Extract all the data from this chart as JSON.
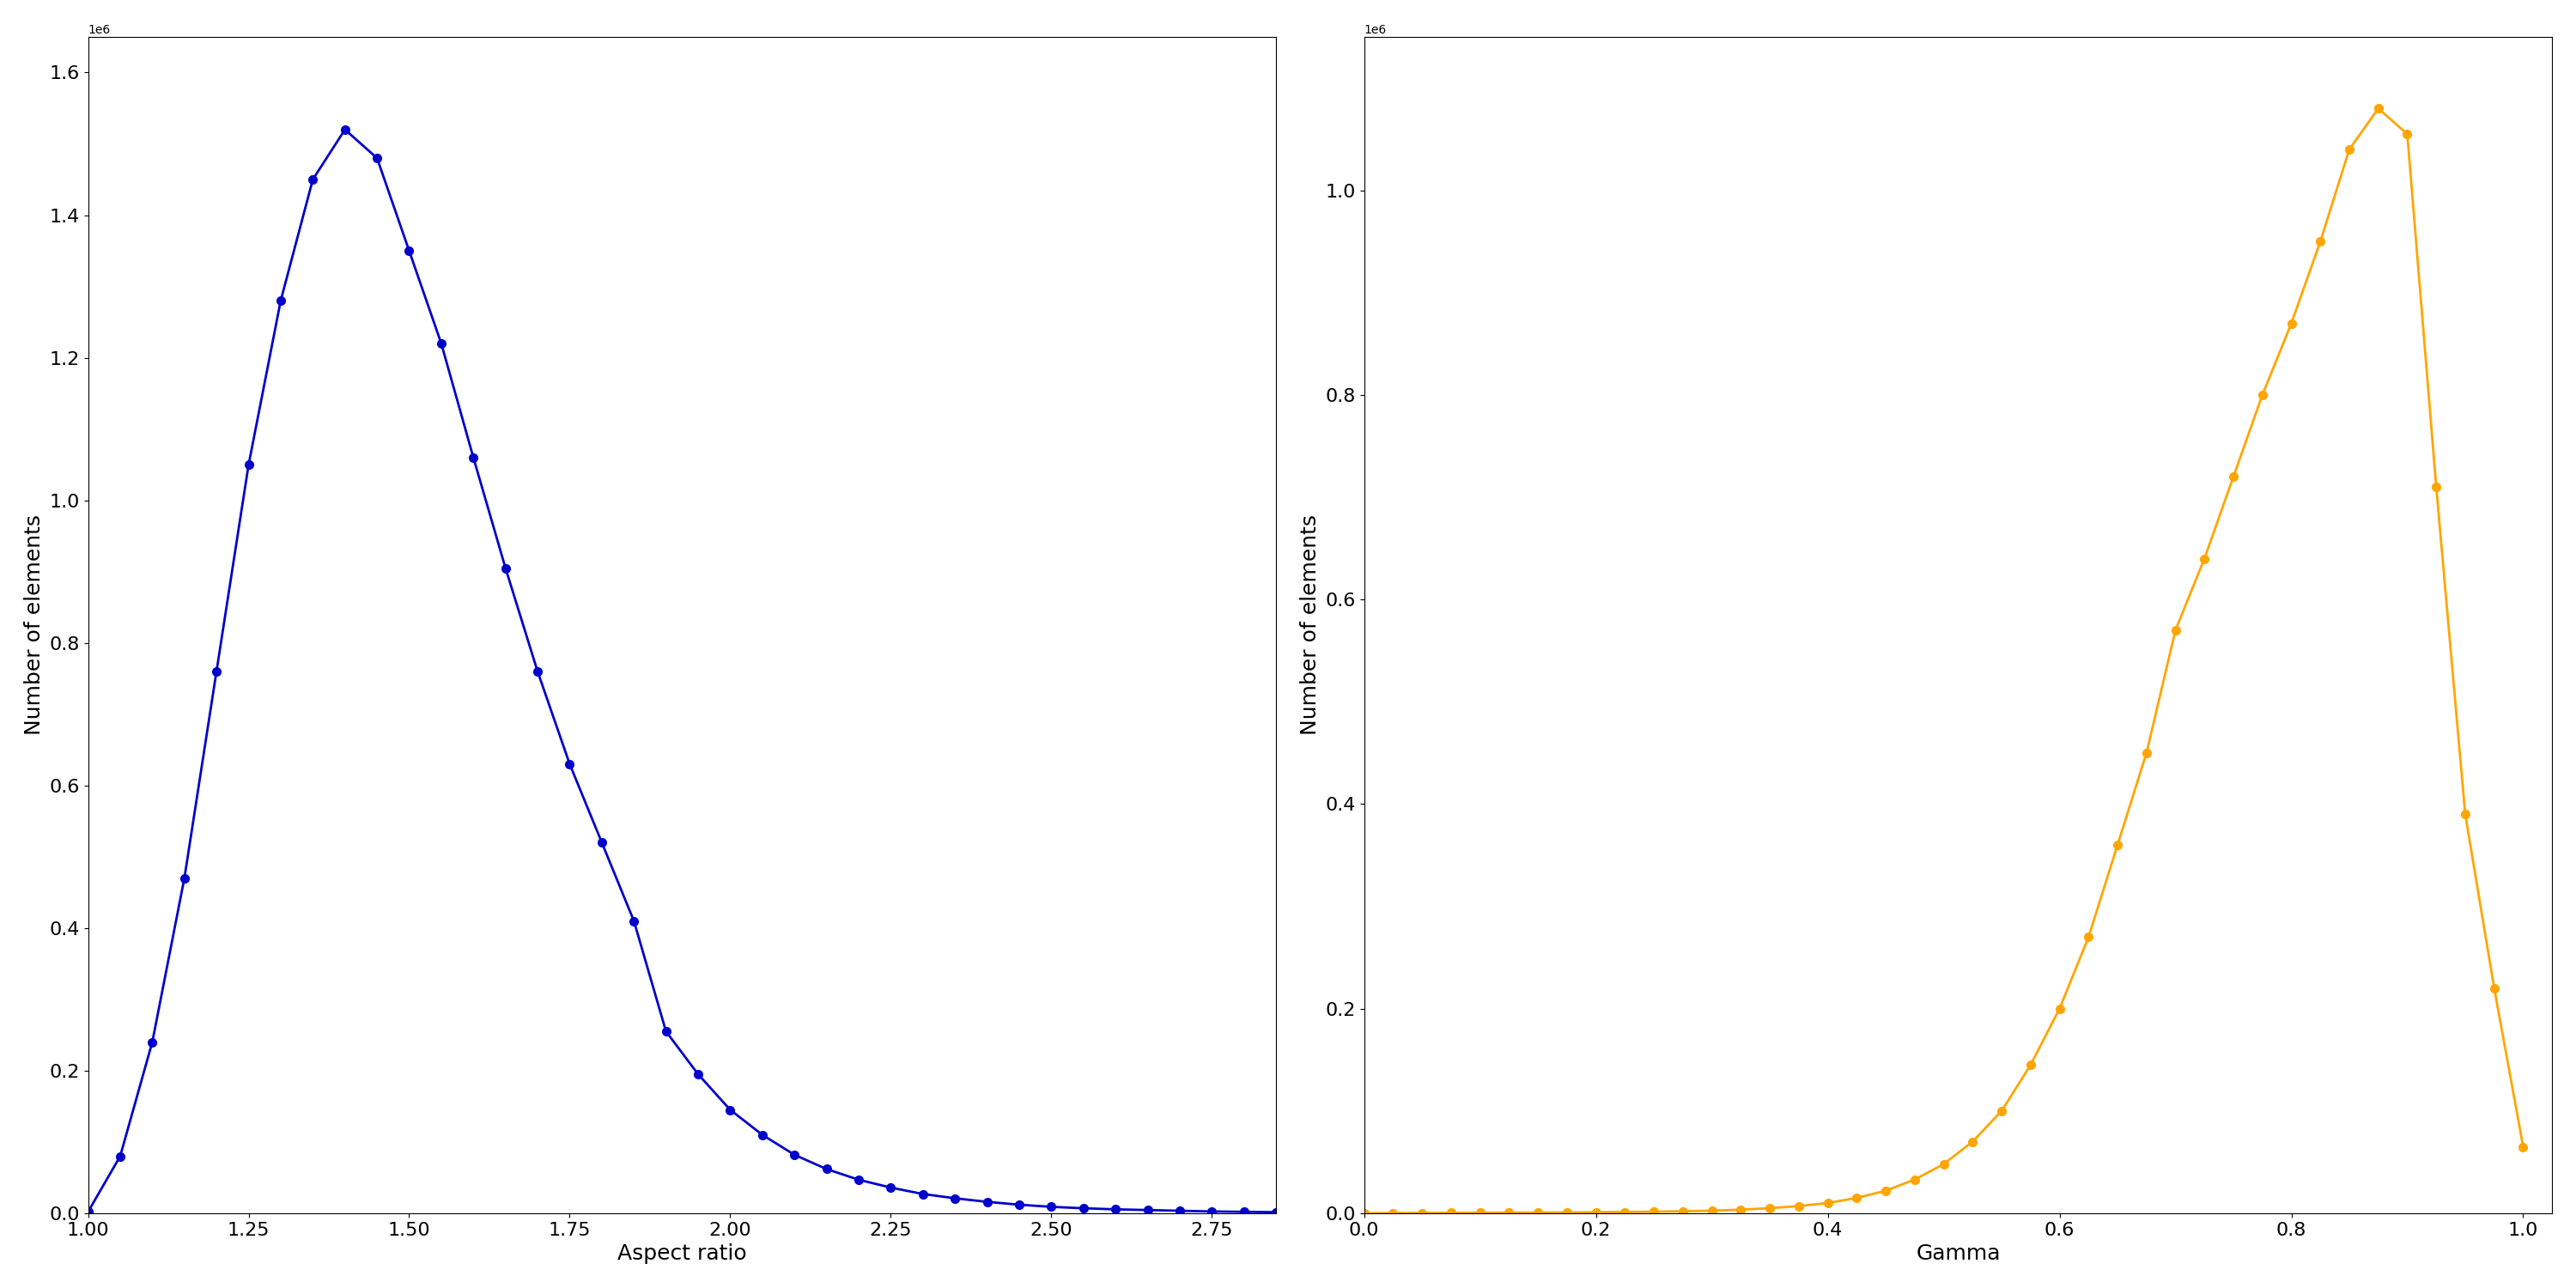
{
  "plot1": {
    "color": "#0000CC",
    "xlabel": "Aspect ratio",
    "ylabel": "Number of elements",
    "x": [
      1.0,
      1.05,
      1.1,
      1.15,
      1.2,
      1.25,
      1.3,
      1.35,
      1.4,
      1.45,
      1.5,
      1.55,
      1.6,
      1.65,
      1.7,
      1.75,
      1.8,
      1.85,
      1.9,
      1.95,
      2.0,
      2.05,
      2.1,
      2.15,
      2.2,
      2.25,
      2.3,
      2.35,
      2.4,
      2.45,
      2.5,
      2.55,
      2.6,
      2.65,
      2.7,
      2.75,
      2.8,
      2.85
    ],
    "y": [
      2000,
      80000,
      240000,
      470000,
      760000,
      1050000,
      1280000,
      1450000,
      1520000,
      1480000,
      1350000,
      1220000,
      1060000,
      905000,
      760000,
      630000,
      520000,
      410000,
      255000,
      195000,
      145000,
      110000,
      82000,
      62000,
      47000,
      36000,
      27000,
      21000,
      16000,
      12000,
      9000,
      7000,
      5500,
      4500,
      3500,
      2500,
      2000,
      1500
    ],
    "ylim": [
      0,
      1650000.0
    ],
    "xlim": [
      1.0,
      2.85
    ]
  },
  "plot2": {
    "color": "#FFA500",
    "xlabel": "Gamma",
    "ylabel": "Number of elements",
    "x": [
      0.0,
      0.025,
      0.05,
      0.075,
      0.1,
      0.125,
      0.15,
      0.175,
      0.2,
      0.225,
      0.25,
      0.275,
      0.3,
      0.325,
      0.35,
      0.375,
      0.4,
      0.425,
      0.45,
      0.475,
      0.5,
      0.525,
      0.55,
      0.575,
      0.6,
      0.625,
      0.65,
      0.675,
      0.7,
      0.725,
      0.75,
      0.775,
      0.8,
      0.825,
      0.85,
      0.875,
      0.9,
      0.925,
      0.95,
      0.975,
      1.0
    ],
    "y": [
      100,
      200,
      300,
      400,
      500,
      600,
      700,
      800,
      1000,
      1200,
      1500,
      2000,
      2500,
      3500,
      5000,
      7000,
      10000,
      15000,
      22000,
      33000,
      48000,
      70000,
      100000,
      145000,
      200000,
      270000,
      360000,
      450000,
      570000,
      640000,
      720000,
      800000,
      870000,
      950000,
      1040000,
      1080000,
      1055000,
      710000,
      390000,
      220000,
      65000
    ],
    "ylim": [
      0,
      1150000.0
    ],
    "xlim": [
      0.0,
      1.025
    ]
  }
}
